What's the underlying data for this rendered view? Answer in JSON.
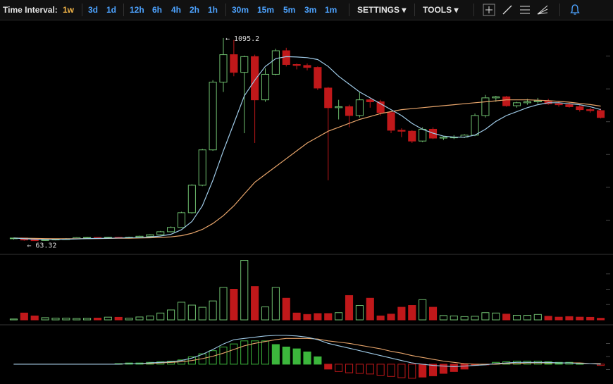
{
  "toolbar": {
    "time_interval_label": "Time Interval:",
    "intervals": [
      "1w",
      "3d",
      "1d",
      "12h",
      "6h",
      "4h",
      "2h",
      "1h",
      "30m",
      "15m",
      "5m",
      "3m",
      "1m"
    ],
    "active_interval": "1w",
    "settings_label": "SETTINGS",
    "tools_label": "TOOLS",
    "tool_icons": [
      "crosshair-icon",
      "trend-line-icon",
      "horizontal-lines-icon",
      "fan-icon",
      "alert-bell-icon"
    ]
  },
  "chart_data": {
    "type": "candlestick",
    "colors": {
      "up": "#6fbf6f",
      "down": "#c0181a",
      "ma_fast": "#9ec9e6",
      "ma_slow": "#e8a56b",
      "macd_up": "#3cb63c",
      "macd_down": "#c0181a"
    },
    "annotations": {
      "high_label": "← 1095.2",
      "low_label": "← 63.32"
    },
    "price": {
      "ylim": [
        0,
        1170
      ],
      "candles": [
        [
          76,
          78,
          68,
          76
        ],
        [
          76,
          74,
          62,
          66
        ],
        [
          66,
          70,
          62,
          64
        ],
        [
          64,
          68,
          62,
          67
        ],
        [
          67,
          71,
          64,
          70
        ],
        [
          70,
          75,
          68,
          72
        ],
        [
          72,
          80,
          70,
          78
        ],
        [
          78,
          82,
          76,
          79
        ],
        [
          79,
          80,
          75,
          77
        ],
        [
          77,
          82,
          76,
          80
        ],
        [
          80,
          82,
          74,
          76
        ],
        [
          76,
          83,
          74,
          80
        ],
        [
          80,
          88,
          78,
          85
        ],
        [
          85,
          96,
          82,
          93
        ],
        [
          93,
          112,
          90,
          108
        ],
        [
          108,
          135,
          105,
          130
        ],
        [
          130,
          210,
          128,
          205
        ],
        [
          205,
          350,
          200,
          345
        ],
        [
          345,
          530,
          340,
          525
        ],
        [
          525,
          880,
          520,
          870
        ],
        [
          870,
          1095,
          820,
          1010
        ],
        [
          1010,
          1085,
          900,
          920
        ],
        [
          920,
          1005,
          610,
          1000
        ],
        [
          1000,
          1010,
          560,
          780
        ],
        [
          780,
          940,
          770,
          910
        ],
        [
          910,
          1040,
          905,
          1030
        ],
        [
          1030,
          1045,
          950,
          960
        ],
        [
          960,
          965,
          935,
          955
        ],
        [
          955,
          965,
          930,
          945
        ],
        [
          945,
          950,
          830,
          840
        ],
        [
          840,
          845,
          370,
          740
        ],
        [
          740,
          780,
          680,
          745
        ],
        [
          745,
          755,
          640,
          700
        ],
        [
          700,
          820,
          690,
          780
        ],
        [
          780,
          790,
          740,
          770
        ],
        [
          770,
          780,
          700,
          715
        ],
        [
          715,
          720,
          610,
          625
        ],
        [
          625,
          635,
          590,
          620
        ],
        [
          620,
          625,
          560,
          570
        ],
        [
          570,
          640,
          565,
          630
        ],
        [
          630,
          640,
          580,
          585
        ],
        [
          585,
          595,
          575,
          590
        ],
        [
          590,
          600,
          580,
          590
        ],
        [
          590,
          605,
          585,
          600
        ],
        [
          600,
          710,
          595,
          700
        ],
        [
          700,
          805,
          690,
          790
        ],
        [
          790,
          800,
          770,
          795
        ],
        [
          795,
          800,
          745,
          750
        ],
        [
          750,
          770,
          740,
          765
        ],
        [
          765,
          785,
          755,
          770
        ],
        [
          770,
          790,
          760,
          775
        ],
        [
          775,
          785,
          755,
          760
        ],
        [
          760,
          770,
          745,
          755
        ],
        [
          755,
          765,
          740,
          745
        ],
        [
          745,
          755,
          720,
          730
        ],
        [
          730,
          740,
          715,
          725
        ],
        [
          725,
          735,
          685,
          690
        ]
      ],
      "ma_fast": [
        76,
        72,
        70,
        69,
        69,
        70,
        71,
        73,
        74,
        75,
        76,
        77,
        78,
        81,
        86,
        95,
        118,
        160,
        240,
        370,
        520,
        660,
        800,
        880,
        950,
        990,
        1000,
        998,
        995,
        985,
        950,
        900,
        860,
        820,
        790,
        760,
        730,
        700,
        660,
        630,
        610,
        595,
        590,
        590,
        600,
        630,
        670,
        700,
        720,
        740,
        755,
        765,
        765,
        760,
        755,
        745,
        730
      ],
      "ma_slow": [
        76,
        75,
        74,
        73,
        72,
        72,
        72,
        73,
        73,
        74,
        75,
        75,
        76,
        77,
        79,
        82,
        88,
        100,
        120,
        150,
        190,
        240,
        300,
        360,
        400,
        440,
        480,
        520,
        560,
        590,
        620,
        640,
        660,
        680,
        695,
        710,
        720,
        730,
        735,
        740,
        745,
        750,
        755,
        760,
        765,
        770,
        775,
        780,
        780,
        780,
        778,
        776,
        772,
        768,
        762,
        756,
        748
      ]
    },
    "volume": {
      "values": [
        5,
        38,
        22,
        12,
        10,
        10,
        8,
        9,
        10,
        15,
        14,
        10,
        16,
        22,
        38,
        55,
        98,
        82,
        70,
        105,
        180,
        170,
        330,
        185,
        72,
        180,
        120,
        38,
        30,
        35,
        35,
        40,
        135,
        80,
        120,
        22,
        32,
        70,
        80,
        112,
        70,
        24,
        22,
        18,
        20,
        40,
        38,
        32,
        25,
        25,
        30,
        20,
        15,
        18,
        15,
        14,
        9
      ],
      "ylim": [
        0,
        340
      ]
    },
    "macd": {
      "histogram": [
        0,
        0,
        0,
        0,
        0,
        0,
        0,
        0,
        0,
        0,
        1,
        2,
        2,
        3,
        4,
        5,
        7,
        12,
        17,
        22,
        28,
        33,
        38,
        38,
        38,
        32,
        28,
        25,
        20,
        12,
        -8,
        -12,
        -14,
        -15,
        -16,
        -18,
        -20,
        -22,
        -23,
        -21,
        -19,
        -15,
        -12,
        -8,
        -2,
        -1,
        3,
        4,
        5,
        5,
        5,
        4,
        3,
        3,
        1,
        0,
        -2
      ],
      "line": [
        0,
        0,
        0,
        0,
        0,
        0,
        0,
        0,
        0,
        0,
        0,
        1,
        1,
        2,
        3,
        4,
        6,
        10,
        16,
        24,
        33,
        40,
        42,
        44,
        46,
        47,
        47,
        46,
        44,
        40,
        34,
        30,
        26,
        22,
        18,
        14,
        10,
        6,
        2,
        0,
        -2,
        -3,
        -4,
        -3,
        -2,
        -1,
        1,
        2,
        3,
        3,
        3,
        3,
        2,
        2,
        1,
        1,
        0
      ],
      "signal": [
        0,
        0,
        0,
        0,
        0,
        0,
        0,
        0,
        0,
        0,
        0,
        1,
        1,
        1,
        2,
        3,
        4,
        6,
        9,
        13,
        18,
        24,
        30,
        34,
        37,
        40,
        42,
        42,
        42,
        41,
        38,
        36,
        34,
        31,
        28,
        25,
        21,
        18,
        14,
        11,
        8,
        5,
        3,
        1,
        0,
        0,
        0,
        1,
        1,
        2,
        2,
        2,
        2,
        2,
        2,
        1,
        1
      ],
      "ylim": [
        -30,
        55
      ]
    }
  }
}
